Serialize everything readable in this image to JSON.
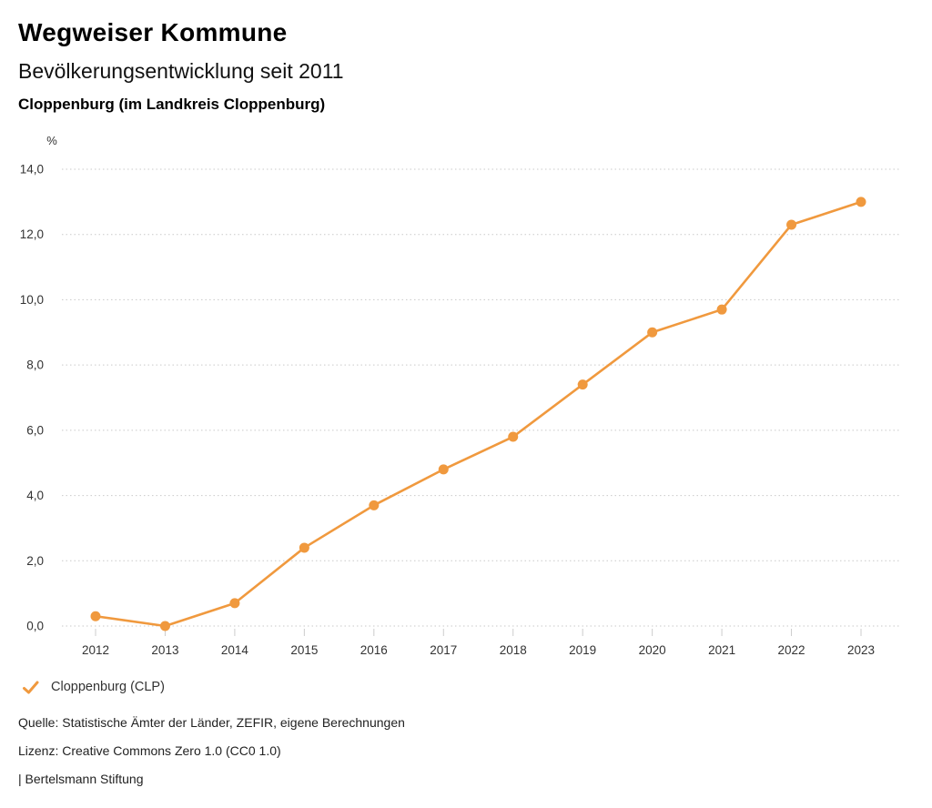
{
  "header": {
    "title": "Wegweiser Kommune",
    "subtitle": "Bevölkerungsentwicklung seit 2011",
    "region": "Cloppenburg (im Landkreis Cloppenburg)"
  },
  "chart_data": {
    "type": "line",
    "title": "Bevölkerungsentwicklung seit 2011",
    "unit_label": "%",
    "categories": [
      "2012",
      "2013",
      "2014",
      "2015",
      "2016",
      "2017",
      "2018",
      "2019",
      "2020",
      "2021",
      "2022",
      "2023"
    ],
    "series": [
      {
        "name": "Cloppenburg (CLP)",
        "values": [
          0.3,
          0.0,
          0.7,
          2.4,
          3.7,
          4.8,
          5.8,
          7.4,
          9.0,
          9.7,
          12.3,
          13.0
        ]
      }
    ],
    "ylim": [
      0,
      14
    ],
    "ytick_step": 2,
    "ytick_labels": [
      "0,0",
      "2,0",
      "4,0",
      "6,0",
      "8,0",
      "10,0",
      "12,0",
      "14,0"
    ],
    "grid": "horizontal-dotted",
    "legend_position": "bottom-left"
  },
  "legend": {
    "items": [
      {
        "label": "Cloppenburg (CLP)",
        "icon": "check-icon"
      }
    ]
  },
  "footer": {
    "source": "Quelle: Statistische Ämter der Länder, ZEFIR, eigene Berechnungen",
    "license": "Lizenz: Creative Commons Zero 1.0 (CC0 1.0)",
    "attribution": "| Bertelsmann Stiftung"
  },
  "colors": {
    "accent": "#F0993E",
    "grid": "#c9c9c9",
    "tick": "#cccccc",
    "tick_text": "#333333"
  }
}
